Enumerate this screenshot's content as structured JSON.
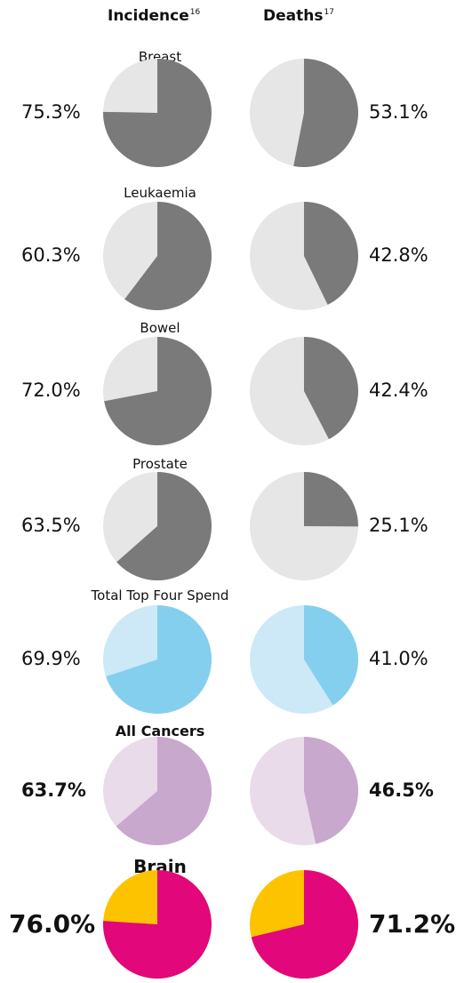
{
  "header": {
    "incidence_label": "Incidence",
    "incidence_ref": "16",
    "deaths_label": "Deaths",
    "deaths_ref": "17"
  },
  "chart_data": [
    {
      "type": "pie",
      "title": "Breast",
      "incidence_label": "75.3%",
      "deaths_label": "53.1%",
      "incidence": 75.3,
      "deaths": 53.1,
      "colors": {
        "main": "#7a7a7b",
        "rest": "#e6e6e6"
      },
      "style": "normal"
    },
    {
      "type": "pie",
      "title": "Leukaemia",
      "incidence_label": "60.3%",
      "deaths_label": "42.8%",
      "incidence": 60.3,
      "deaths": 42.8,
      "colors": {
        "main": "#7a7a7b",
        "rest": "#e6e6e6"
      },
      "style": "normal"
    },
    {
      "type": "pie",
      "title": "Bowel",
      "incidence_label": "72.0%",
      "deaths_label": "42.4%",
      "incidence": 72.0,
      "deaths": 42.4,
      "colors": {
        "main": "#7a7a7b",
        "rest": "#e6e6e6"
      },
      "style": "normal"
    },
    {
      "type": "pie",
      "title": "Prostate",
      "incidence_label": "63.5%",
      "deaths_label": "25.1%",
      "incidence": 63.5,
      "deaths": 25.1,
      "colors": {
        "main": "#7a7a7b",
        "rest": "#e6e6e6"
      },
      "style": "normal"
    },
    {
      "type": "pie",
      "title": "Total Top Four Spend",
      "incidence_label": "69.9%",
      "deaths_label": "41.0%",
      "incidence": 69.9,
      "deaths": 41.0,
      "colors": {
        "main": "#85cfee",
        "rest": "#cde9f7"
      },
      "style": "normal"
    },
    {
      "type": "pie",
      "title": "All Cancers",
      "incidence_label": "63.7%",
      "deaths_label": "46.5%",
      "incidence": 63.7,
      "deaths": 46.5,
      "colors": {
        "main": "#c8a8cc",
        "rest": "#e9dbe9"
      },
      "style": "bold"
    },
    {
      "type": "pie",
      "title": "Brain",
      "incidence_label": "76.0%",
      "deaths_label": "71.2%",
      "incidence": 76.0,
      "deaths": 71.2,
      "colors": {
        "main": "#e2077a",
        "rest": "#fdc300"
      },
      "style": "big"
    }
  ]
}
